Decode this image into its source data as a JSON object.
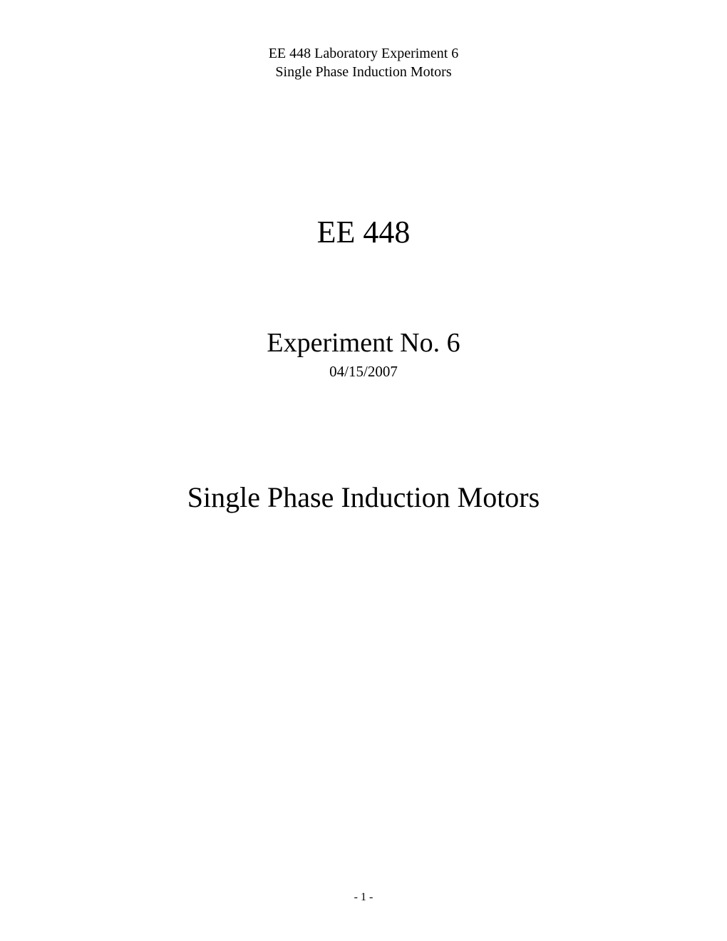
{
  "header": {
    "line1": "EE 448 Laboratory Experiment 6",
    "line2": "Single Phase Induction Motors"
  },
  "course_title": "EE 448",
  "experiment_title": "Experiment No. 6",
  "date": "04/15/2007",
  "main_title": "Single Phase Induction Motors",
  "page_number": "- 1 -",
  "colors": {
    "background": "#ffffff",
    "text": "#000000"
  },
  "typography": {
    "font_family": "Georgia, 'Times New Roman', serif",
    "header_fontsize": 20,
    "course_title_fontsize": 44,
    "experiment_title_fontsize": 38,
    "date_fontsize": 21,
    "main_title_fontsize": 40,
    "page_number_fontsize": 16
  }
}
